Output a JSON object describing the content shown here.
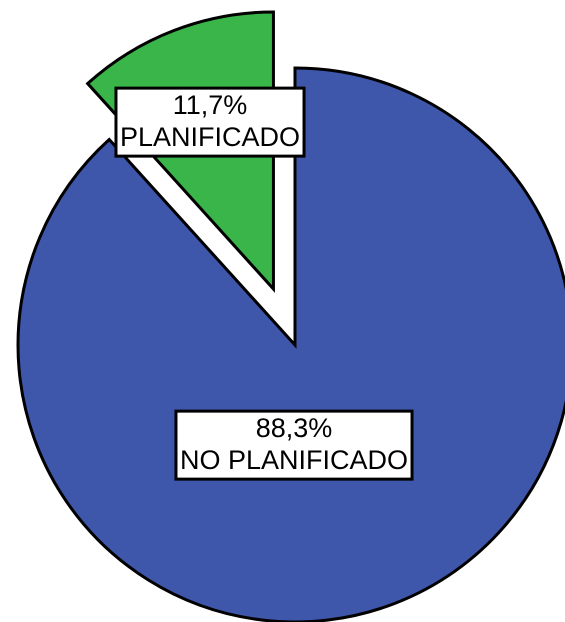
{
  "chart_data": {
    "type": "pie",
    "categories": [
      "NO PLANIFICADO",
      "PLANIFICADO"
    ],
    "values": [
      88.3,
      11.7
    ],
    "value_labels": [
      "88,3%",
      "11,7%"
    ],
    "colors": [
      "#3f57ab",
      "#3ab54a"
    ]
  }
}
